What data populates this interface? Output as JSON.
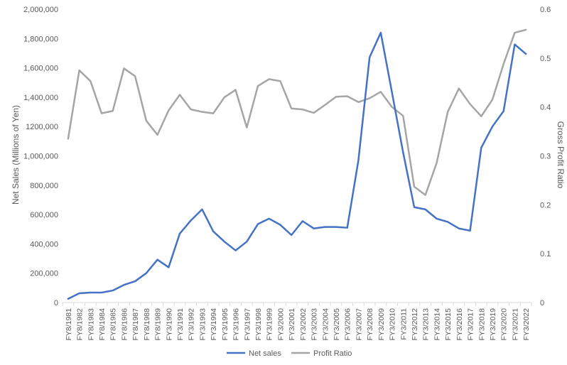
{
  "chart_data": {
    "type": "line",
    "title": "",
    "xlabel": "",
    "ylabel": "Net Sales (Millions of Yen)",
    "y2label": "Gross Profit Ratio",
    "ylim": [
      0,
      2000000
    ],
    "y2lim": [
      0,
      0.6
    ],
    "yticks": [
      {
        "value": 0,
        "label": "0"
      },
      {
        "value": 200000,
        "label": "200,000"
      },
      {
        "value": 400000,
        "label": "400,000"
      },
      {
        "value": 600000,
        "label": "600,000"
      },
      {
        "value": 800000,
        "label": "800,000"
      },
      {
        "value": 1000000,
        "label": "1,000,000"
      },
      {
        "value": 1200000,
        "label": "1200,000"
      },
      {
        "value": 1400000,
        "label": "1,400,000"
      },
      {
        "value": 1600000,
        "label": "1,600,000"
      },
      {
        "value": 1800000,
        "label": "1,800,000"
      },
      {
        "value": 2000000,
        "label": "2,000,000"
      }
    ],
    "y2ticks": [
      {
        "value": 0,
        "label": "0"
      },
      {
        "value": 0.1,
        "label": "0.1"
      },
      {
        "value": 0.2,
        "label": "0.2"
      },
      {
        "value": 0.3,
        "label": "0.3"
      },
      {
        "value": 0.4,
        "label": "0.4"
      },
      {
        "value": 0.5,
        "label": "0.5"
      },
      {
        "value": 0.6,
        "label": "0.6"
      }
    ],
    "grid": false,
    "legend_position": "bottom",
    "categories": [
      "FY8/1981",
      "FY8/1982",
      "FY8/1983",
      "FY8/1984",
      "FY8/1985",
      "FY8/1986",
      "FY8/1987",
      "FY8/1988",
      "FY8/1989",
      "FY3/1990",
      "FY3/1991",
      "FY3/1992",
      "FY3/1993",
      "FY3/1994",
      "FY3/1995",
      "FY3/1996",
      "FY3/1997",
      "FY3/1998",
      "FY3/1999",
      "FY3/2000",
      "FY3/2001",
      "FY3/2002",
      "FY3/2003",
      "FY3/2004",
      "FY3/2005",
      "FY3/2006",
      "FY3/2007",
      "FY3/2008",
      "FY3/2009",
      "FY3/2010",
      "FY3/2011",
      "FY3/2012",
      "FY3/2013",
      "FY3/2014",
      "FY3/2015",
      "FY3/2016",
      "FY3/2017",
      "FY3/2018",
      "FY3/2019",
      "FY3/2020",
      "FY3/2021",
      "FY3/2022"
    ],
    "series": [
      {
        "name": "Net sales",
        "axis": "left",
        "color": "#4472C4",
        "values": [
          25000,
          63000,
          68000,
          68000,
          82000,
          120000,
          145000,
          200000,
          292000,
          240000,
          470000,
          560000,
          635000,
          485000,
          415000,
          355000,
          415000,
          535000,
          572000,
          530000,
          460000,
          555000,
          505000,
          515000,
          515000,
          510000,
          970000,
          1672000,
          1840000,
          1435000,
          1025000,
          650000,
          635000,
          572000,
          550000,
          505000,
          490000,
          1055000,
          1200000,
          1305000,
          1760000,
          1695000
        ]
      },
      {
        "name": "Profit Ratio",
        "axis": "right",
        "color": "#A5A5A5",
        "values": [
          0.335,
          0.475,
          0.453,
          0.387,
          0.392,
          0.479,
          0.463,
          0.372,
          0.343,
          0.393,
          0.425,
          0.395,
          0.39,
          0.387,
          0.42,
          0.435,
          0.358,
          0.443,
          0.457,
          0.453,
          0.397,
          0.395,
          0.388,
          0.404,
          0.421,
          0.422,
          0.41,
          0.418,
          0.431,
          0.4,
          0.382,
          0.237,
          0.22,
          0.285,
          0.39,
          0.438,
          0.406,
          0.381,
          0.415,
          0.488,
          0.552,
          0.558
        ]
      }
    ]
  }
}
